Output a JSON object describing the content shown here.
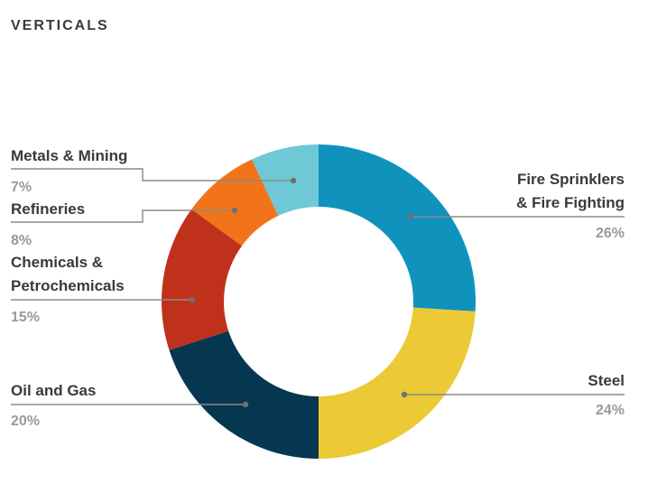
{
  "heading": "VERTICALS",
  "chart_data": {
    "type": "pie",
    "title": "VERTICALS",
    "variant": "donut",
    "slices": [
      {
        "label_lines": [
          "Fire Sprinklers",
          "& Fire Fighting"
        ],
        "value": 26,
        "pct_label": "26%",
        "color": "#0f93bd"
      },
      {
        "label_lines": [
          "Steel"
        ],
        "value": 24,
        "pct_label": "24%",
        "color": "#ebca36"
      },
      {
        "label_lines": [
          "Oil and Gas"
        ],
        "value": 20,
        "pct_label": "20%",
        "color": "#063751"
      },
      {
        "label_lines": [
          "Chemicals &",
          "Petrochemicals"
        ],
        "value": 15,
        "pct_label": "15%",
        "color": "#c0311b"
      },
      {
        "label_lines": [
          "Refineries"
        ],
        "value": 8,
        "pct_label": "8%",
        "color": "#f1741b"
      },
      {
        "label_lines": [
          "Metals & Mining"
        ],
        "value": 7,
        "pct_label": "7%",
        "color": "#6ec8d5"
      }
    ]
  }
}
